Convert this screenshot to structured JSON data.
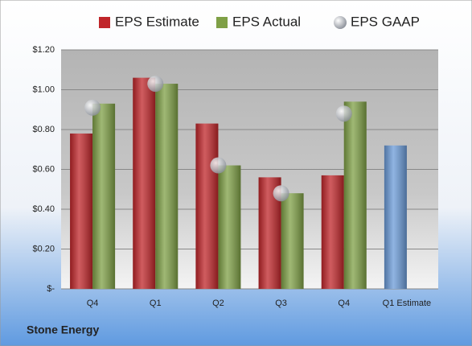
{
  "chart_data": {
    "type": "bar",
    "title": "Stone Energy",
    "categories": [
      "Q4",
      "Q1",
      "Q2",
      "Q3",
      "Q4",
      "Q1 Estimate"
    ],
    "series": [
      {
        "name": "EPS Estimate",
        "color": "#c0262a",
        "colors": [
          "#c0262a",
          "#c0262a",
          "#c0262a",
          "#c0262a",
          "#c0262a",
          "#6b9bd8"
        ],
        "values": [
          0.78,
          1.06,
          0.83,
          0.56,
          0.57,
          0.72
        ]
      },
      {
        "name": "EPS Actual",
        "color": "#7fa046",
        "values": [
          0.93,
          1.03,
          0.62,
          0.48,
          0.94,
          null
        ]
      },
      {
        "name": "EPS GAAP",
        "type": "scatter",
        "color": "#b8bcc4",
        "values": [
          0.91,
          1.03,
          0.62,
          0.48,
          0.88,
          null
        ]
      }
    ],
    "ylim": [
      0,
      1.2
    ],
    "yticks": [
      {
        "value": 0,
        "label": "$-"
      },
      {
        "value": 0.2,
        "label": "$0.20"
      },
      {
        "value": 0.4,
        "label": "$0.40"
      },
      {
        "value": 0.6,
        "label": "$0.60"
      },
      {
        "value": 0.8,
        "label": "$0.80"
      },
      {
        "value": 1.0,
        "label": "$1.00"
      },
      {
        "value": 1.2,
        "label": "$1.20"
      }
    ],
    "grid": true
  }
}
